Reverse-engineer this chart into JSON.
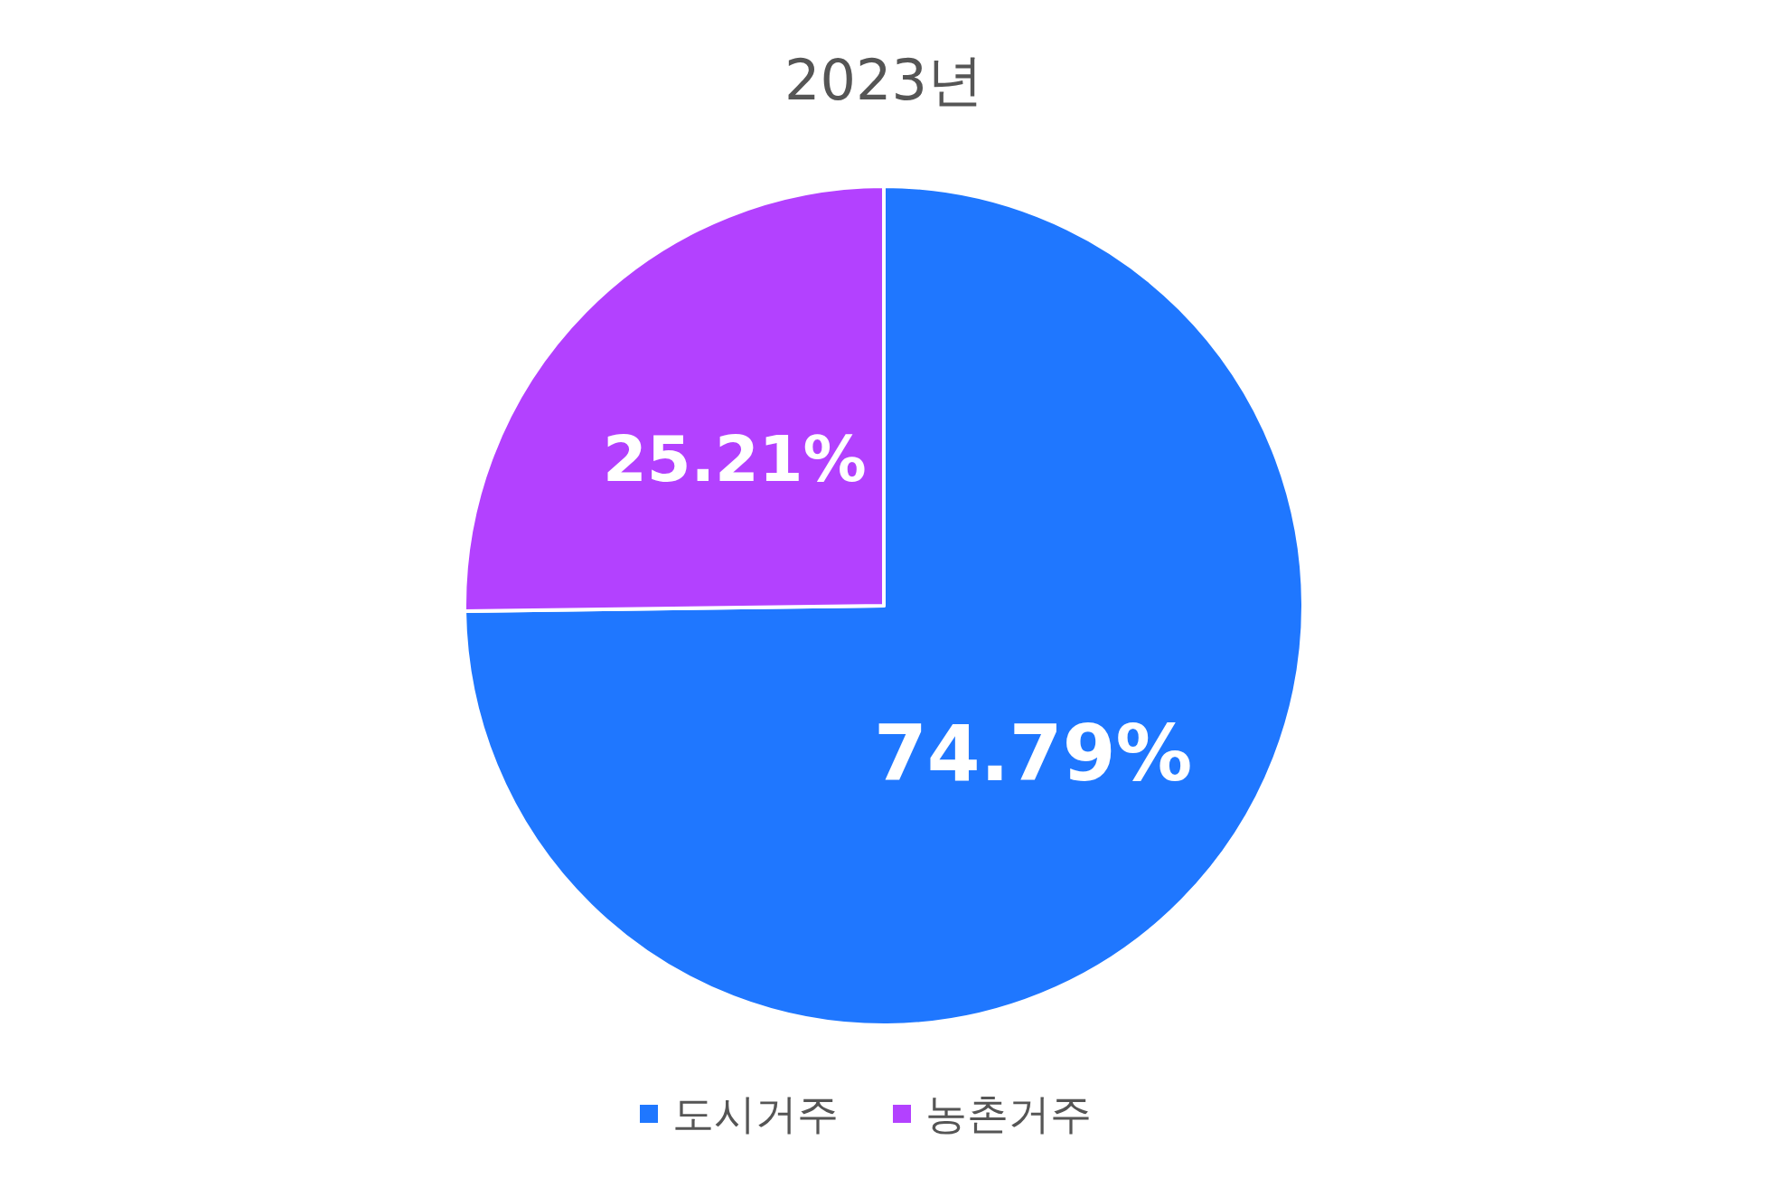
{
  "chart_data": {
    "type": "pie",
    "title": "2023년",
    "categories": [
      "도시거주",
      "농촌거주"
    ],
    "values": [
      74.79,
      25.21
    ],
    "colors": [
      "#1f77ff",
      "#b341ff"
    ],
    "value_labels": [
      "74.79%",
      "25.21%"
    ],
    "legend": "bottom"
  }
}
